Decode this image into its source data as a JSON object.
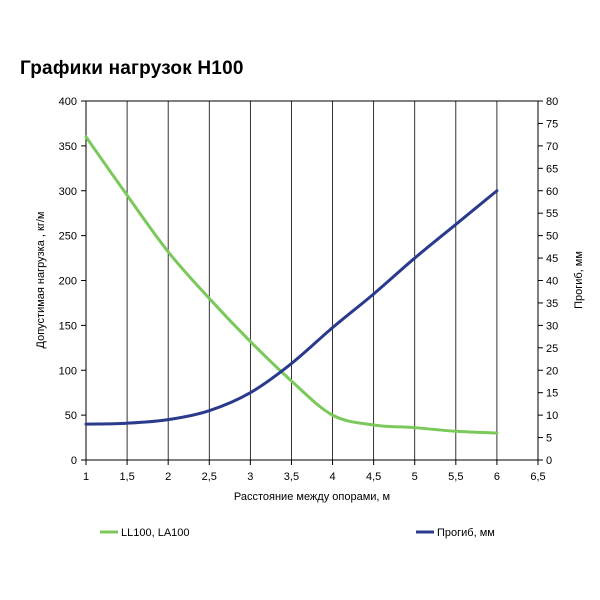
{
  "chart_data": {
    "type": "line",
    "title": "Графики нагрузок H100",
    "xlabel": "Расстояние между опорами, м",
    "ylabel": "Допустимая нагрузка , кг/м",
    "y2label": "Прогиб, мм",
    "xlim": [
      1,
      6.5
    ],
    "ylim": [
      0,
      400
    ],
    "y2lim": [
      0,
      80
    ],
    "x_ticks": [
      "1",
      "1,5",
      "2",
      "2,5",
      "3",
      "3,5",
      "4",
      "4,5",
      "5",
      "5,5",
      "6",
      "6,5"
    ],
    "y_ticks": [
      "0",
      "50",
      "100",
      "150",
      "200",
      "250",
      "300",
      "350",
      "400"
    ],
    "y2_ticks": [
      "0",
      "5",
      "10",
      "15",
      "20",
      "25",
      "30",
      "35",
      "40",
      "45",
      "50",
      "55",
      "60",
      "65",
      "70",
      "75",
      "80"
    ],
    "grid": {
      "vertical": true,
      "horizontal": false
    },
    "legend_position": "bottom",
    "series": [
      {
        "name": "LL100, LA100",
        "axis": "left",
        "color": "#7ac95a",
        "x": [
          1,
          1.5,
          2,
          2.5,
          3,
          3.5,
          4,
          4.5,
          5,
          5.5,
          6
        ],
        "y": [
          360,
          295,
          232,
          180,
          132,
          88,
          50,
          39,
          36,
          32,
          30
        ]
      },
      {
        "name": "Прогиб, мм",
        "axis": "right",
        "color": "#2a3a8c",
        "x": [
          1,
          1.5,
          2,
          2.5,
          3,
          3.5,
          4,
          4.5,
          5,
          5.5,
          6
        ],
        "y": [
          8,
          8.2,
          9,
          11,
          15,
          21.5,
          29.5,
          37,
          45,
          52.5,
          60
        ]
      }
    ]
  }
}
